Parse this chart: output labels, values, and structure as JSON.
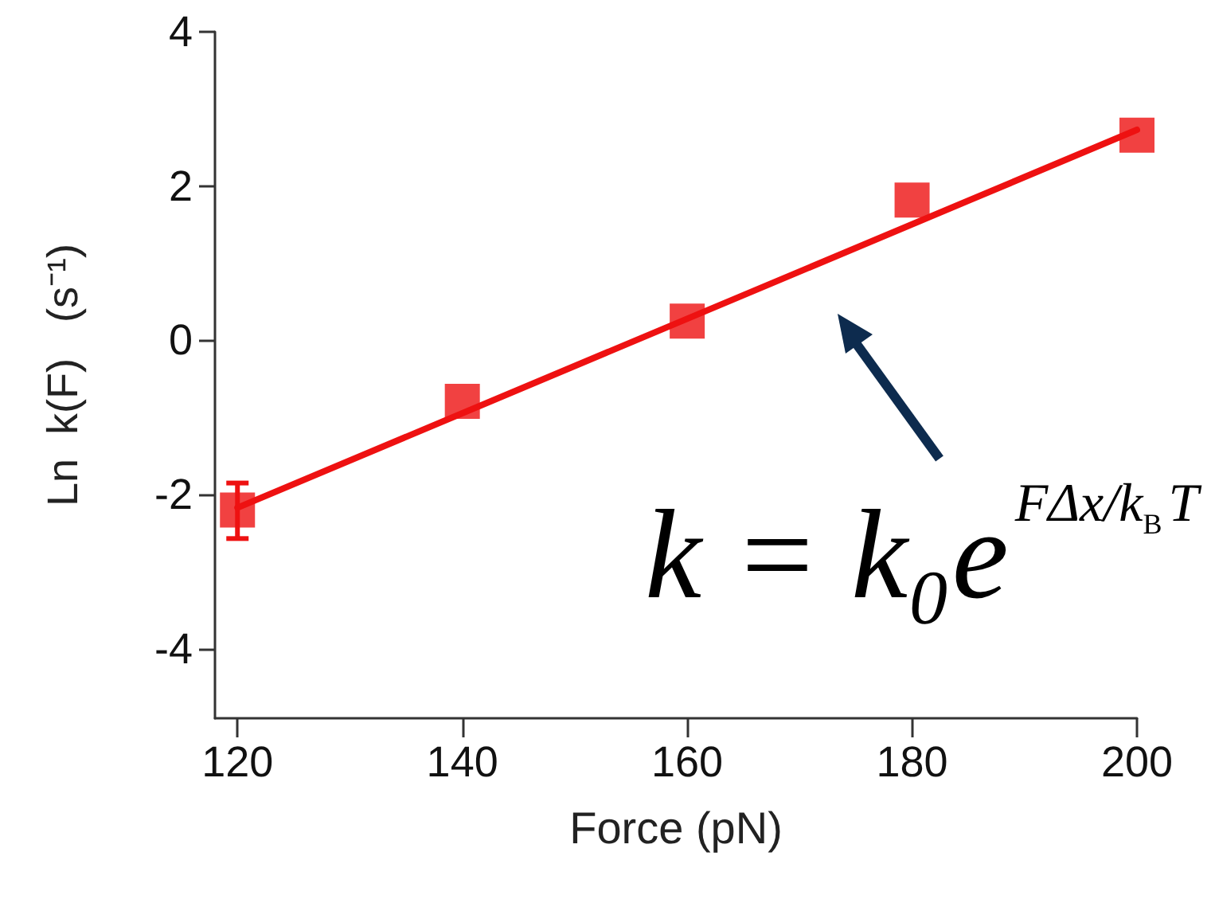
{
  "chart_data": {
    "type": "scatter",
    "xlabel": "Force (pN)",
    "ylabel": "Ln  k(F)   (s⁻¹)",
    "x": [
      120,
      140,
      160,
      180,
      200
    ],
    "series": [
      {
        "color": "#ee1111",
        "values": [
          -2.2,
          -0.79,
          0.25,
          1.82,
          2.66
        ],
        "errors": [
          [
            -2.57,
            -1.85
          ],
          null,
          null,
          null,
          null
        ],
        "marker": "square"
      },
      {
        "type": "line",
        "color": "#ee1111",
        "x": [
          120,
          200
        ],
        "values": [
          -2.17,
          2.73
        ],
        "marker": "none",
        "line_style": "solid"
      }
    ],
    "annotations": [
      "k = k₀e$^{FΔx/k}$$_{B}$$^{T}$"
    ],
    "xlim": [
      118,
      200
    ],
    "xticks": [
      120,
      140,
      160,
      180,
      200
    ],
    "ylim": [
      -4.9,
      4
    ],
    "yticks": [
      -4,
      -2,
      0,
      2,
      4
    ],
    "grid": false
  }
}
